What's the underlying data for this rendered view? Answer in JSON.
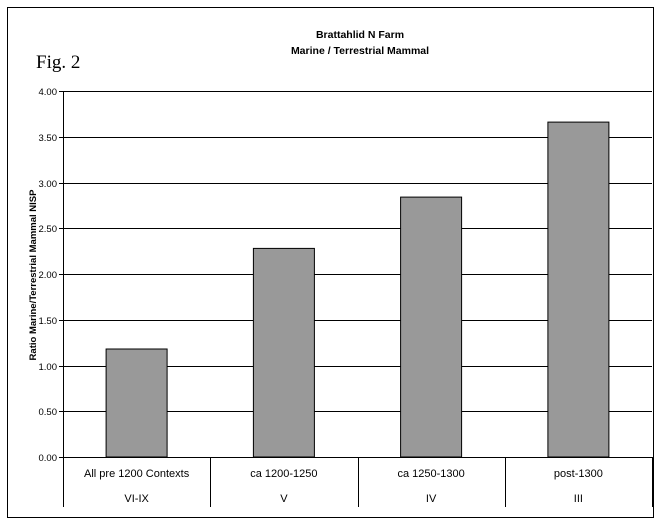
{
  "figure": {
    "label": "Fig. 2"
  },
  "chart_data": {
    "type": "bar",
    "title": "Brattahlid N Farm",
    "subtitle": "Marine / Terrestrial Mammal",
    "xlabel": "",
    "ylabel": "Ratio Marine/Terrestrial Mammal NISP",
    "categories": [
      "All pre 1200 Contexts",
      "ca 1200-1250",
      "ca 1250-1300",
      "post-1300"
    ],
    "phases": [
      "VI-IX",
      "V",
      "IV",
      "III"
    ],
    "values": [
      1.18,
      2.28,
      2.84,
      3.66
    ],
    "ylim": [
      0,
      4
    ],
    "yticks": [
      "0.00",
      "0.50",
      "1.00",
      "1.50",
      "2.00",
      "2.50",
      "3.00",
      "3.50",
      "4.00"
    ],
    "grid": true,
    "legend": "none",
    "bar_color": "#999999"
  }
}
